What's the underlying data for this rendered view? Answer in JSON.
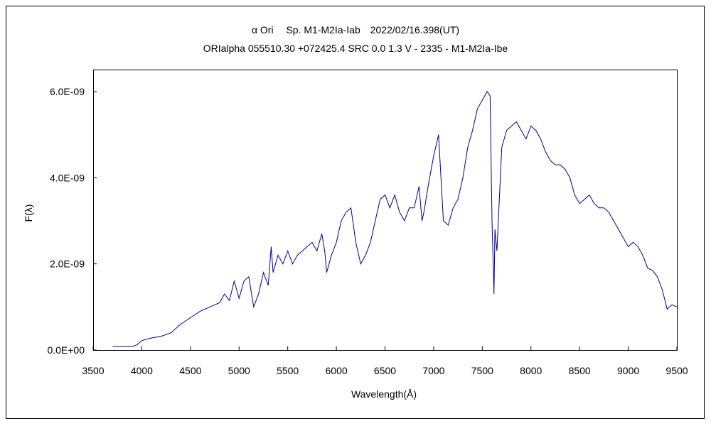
{
  "chart_data": {
    "type": "line",
    "title": "α Ori　 Sp. M1-M2Ia-Iab　2022/02/16.398(UT)",
    "subtitle": "ORIalpha 055510.30 +072425.4 SRC 0.0 1.3 V - 2335 - M1-M2Ia-Ibe",
    "xlabel": "Wavelength(Å)",
    "ylabel": "F(λ)",
    "xlim": [
      3500,
      9500
    ],
    "ylim": [
      0,
      6.5e-09
    ],
    "x_ticks": [
      "3500",
      "4000",
      "4500",
      "5000",
      "5500",
      "6000",
      "6500",
      "7000",
      "7500",
      "8000",
      "8500",
      "9000",
      "9500"
    ],
    "y_ticks": [
      "0.0E+00",
      "2.0E-09",
      "4.0E-09",
      "6.0E-09"
    ],
    "y_tick_values": [
      0,
      2e-09,
      4e-09,
      6e-09
    ],
    "grid": false,
    "line_color": "#00008b",
    "y_unit_multiplier": 1e-09,
    "x": [
      3700,
      3900,
      3950,
      4000,
      4100,
      4200,
      4300,
      4400,
      4500,
      4600,
      4700,
      4800,
      4850,
      4900,
      4950,
      5000,
      5050,
      5100,
      5150,
      5200,
      5250,
      5300,
      5330,
      5350,
      5400,
      5450,
      5500,
      5550,
      5600,
      5650,
      5700,
      5750,
      5800,
      5850,
      5880,
      5900,
      5950,
      6000,
      6050,
      6100,
      6150,
      6200,
      6250,
      6300,
      6350,
      6400,
      6450,
      6500,
      6550,
      6600,
      6650,
      6700,
      6750,
      6800,
      6850,
      6880,
      6900,
      6950,
      7000,
      7050,
      7080,
      7100,
      7150,
      7200,
      7250,
      7300,
      7350,
      7400,
      7450,
      7500,
      7550,
      7580,
      7600,
      7620,
      7630,
      7650,
      7700,
      7750,
      7800,
      7850,
      7900,
      7950,
      8000,
      8050,
      8100,
      8150,
      8200,
      8250,
      8300,
      8350,
      8400,
      8450,
      8500,
      8550,
      8600,
      8650,
      8700,
      8750,
      8800,
      8850,
      8900,
      8950,
      9000,
      9050,
      9100,
      9150,
      9200,
      9250,
      9300,
      9350,
      9400,
      9450,
      9500
    ],
    "y": [
      0.08,
      0.08,
      0.12,
      0.22,
      0.28,
      0.32,
      0.4,
      0.6,
      0.75,
      0.9,
      1.0,
      1.1,
      1.3,
      1.15,
      1.6,
      1.2,
      1.6,
      1.7,
      1.0,
      1.3,
      1.8,
      1.5,
      2.4,
      1.8,
      2.2,
      2.0,
      2.3,
      2.0,
      2.2,
      2.3,
      2.4,
      2.5,
      2.3,
      2.7,
      2.3,
      1.8,
      2.2,
      2.5,
      3.0,
      3.2,
      3.3,
      2.5,
      2.0,
      2.2,
      2.5,
      3.0,
      3.5,
      3.6,
      3.3,
      3.6,
      3.2,
      3.0,
      3.3,
      3.3,
      3.8,
      3.0,
      3.2,
      3.9,
      4.5,
      5.0,
      3.8,
      3.0,
      2.9,
      3.3,
      3.5,
      4.0,
      4.7,
      5.1,
      5.6,
      5.8,
      6.0,
      5.9,
      3.0,
      1.3,
      2.8,
      2.3,
      4.7,
      5.1,
      5.2,
      5.3,
      5.1,
      4.9,
      5.2,
      5.1,
      4.9,
      4.6,
      4.4,
      4.3,
      4.3,
      4.2,
      4.0,
      3.6,
      3.4,
      3.5,
      3.6,
      3.4,
      3.3,
      3.3,
      3.2,
      3.0,
      2.8,
      2.6,
      2.4,
      2.5,
      2.4,
      2.2,
      1.9,
      1.85,
      1.7,
      1.4,
      0.95,
      1.05,
      1.0
    ]
  }
}
